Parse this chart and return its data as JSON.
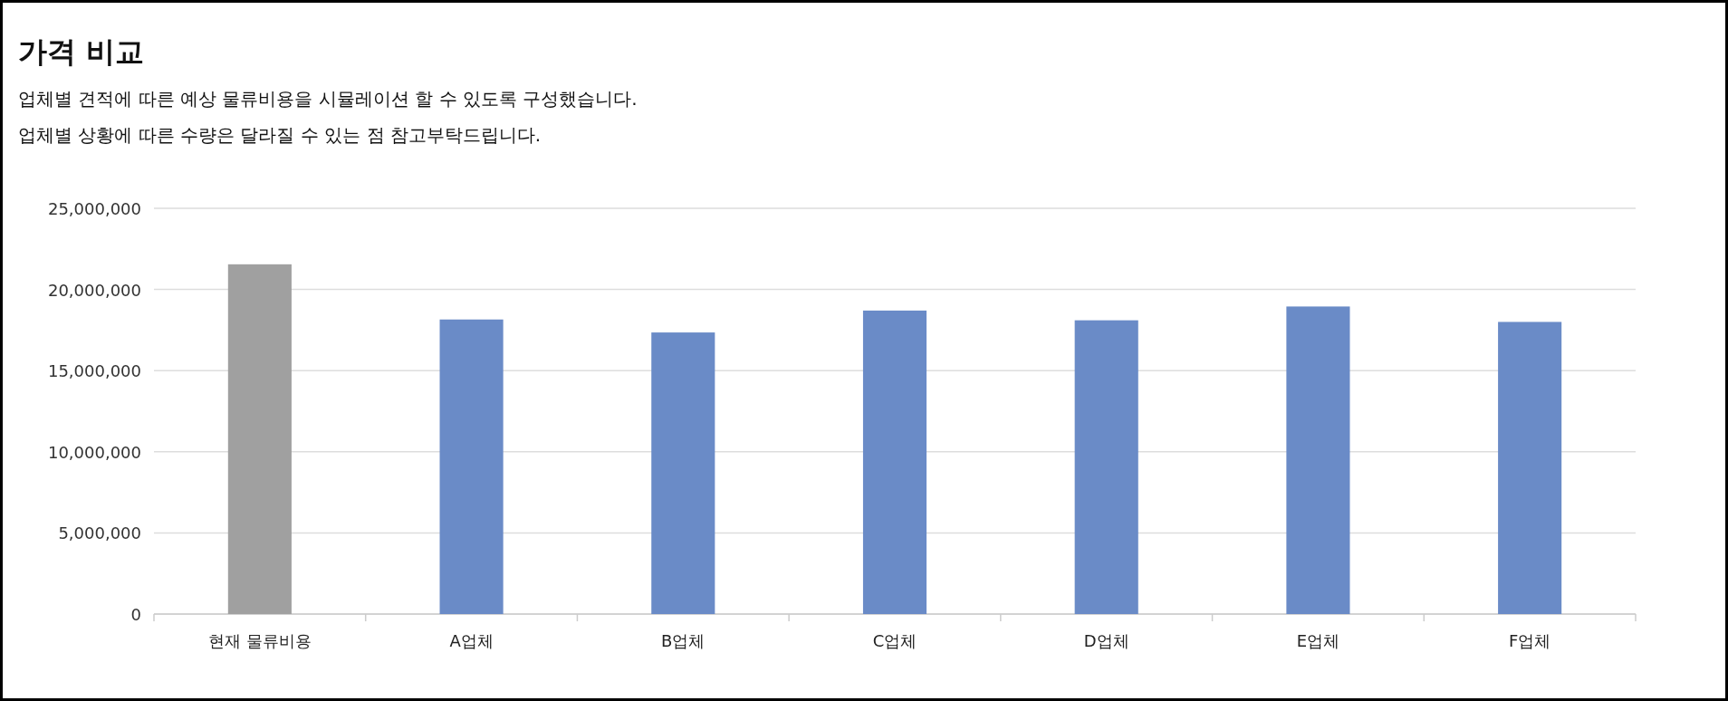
{
  "chart_data": {
    "type": "bar",
    "title": "가격 비교",
    "subtitle": "업체별 견적에 따른 예상 물류비용을 시뮬레이션 할 수 있도록 구성했습니다.",
    "annotations": [
      "업체별 상황에 따른 수량은 달라질 수 있는 점 참고부탁드립니다."
    ],
    "categories": [
      "현재 물류비용",
      "A업체",
      "B업체",
      "C업체",
      "D업체",
      "E업체",
      "F업체"
    ],
    "values": [
      21550000,
      18150000,
      17350000,
      18700000,
      18100000,
      18950000,
      18000000
    ],
    "colors": [
      "#a0a0a0",
      "#6a8bc7",
      "#6a8bc7",
      "#6a8bc7",
      "#6a8bc7",
      "#6a8bc7",
      "#6a8bc7"
    ],
    "ylim": [
      0,
      25000000
    ],
    "yticks": [
      {
        "value": 0,
        "label": "0"
      },
      {
        "value": 5000000,
        "label": "5,000,000"
      },
      {
        "value": 10000000,
        "label": "10,000,000"
      },
      {
        "value": 15000000,
        "label": "15,000,000"
      },
      {
        "value": 20000000,
        "label": "20,000,000"
      },
      {
        "value": 25000000,
        "label": "25,000,000"
      }
    ],
    "grid": "y"
  }
}
